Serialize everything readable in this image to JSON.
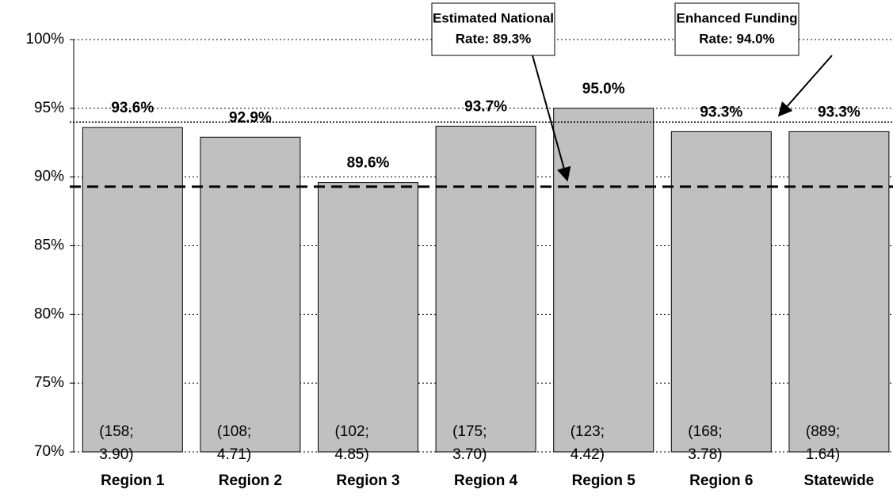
{
  "chart_data": {
    "type": "bar",
    "categories": [
      "Region 1",
      "Region 2",
      "Region 3",
      "Region 4",
      "Region 5",
      "Region 6",
      "Statewide"
    ],
    "values": [
      93.6,
      92.9,
      89.6,
      93.7,
      95.0,
      93.3,
      93.3
    ],
    "value_labels": [
      "93.6%",
      "92.9%",
      "89.6%",
      "93.7%",
      "95.0%",
      "93.3%",
      "93.3%"
    ],
    "bar_notes": [
      [
        "(158;",
        "3.90)"
      ],
      [
        "(108;",
        "4.71)"
      ],
      [
        "(102;",
        "4.85)"
      ],
      [
        "(175;",
        "3.70)"
      ],
      [
        "(123;",
        "4.42)"
      ],
      [
        "(168;",
        "3.78)"
      ],
      [
        "(889;",
        "1.64)"
      ]
    ],
    "color": "#c0c0c0",
    "ylim": [
      70,
      100
    ],
    "yticks": [
      {
        "value": 70,
        "label": "70%"
      },
      {
        "value": 75,
        "label": "75%"
      },
      {
        "value": 80,
        "label": "80%"
      },
      {
        "value": 85,
        "label": "85%"
      },
      {
        "value": 90,
        "label": "90%"
      },
      {
        "value": 95,
        "label": "95%"
      },
      {
        "value": 100,
        "label": "100%"
      }
    ],
    "grid": true,
    "reference_lines": [
      {
        "value": 89.3,
        "style": "dashed",
        "label_lines": [
          "Estimated National",
          "Rate: 89.3%"
        ]
      },
      {
        "value": 94.0,
        "style": "dotted",
        "label_lines": [
          "Enhanced Funding",
          "Rate: 94.0%"
        ]
      }
    ]
  }
}
